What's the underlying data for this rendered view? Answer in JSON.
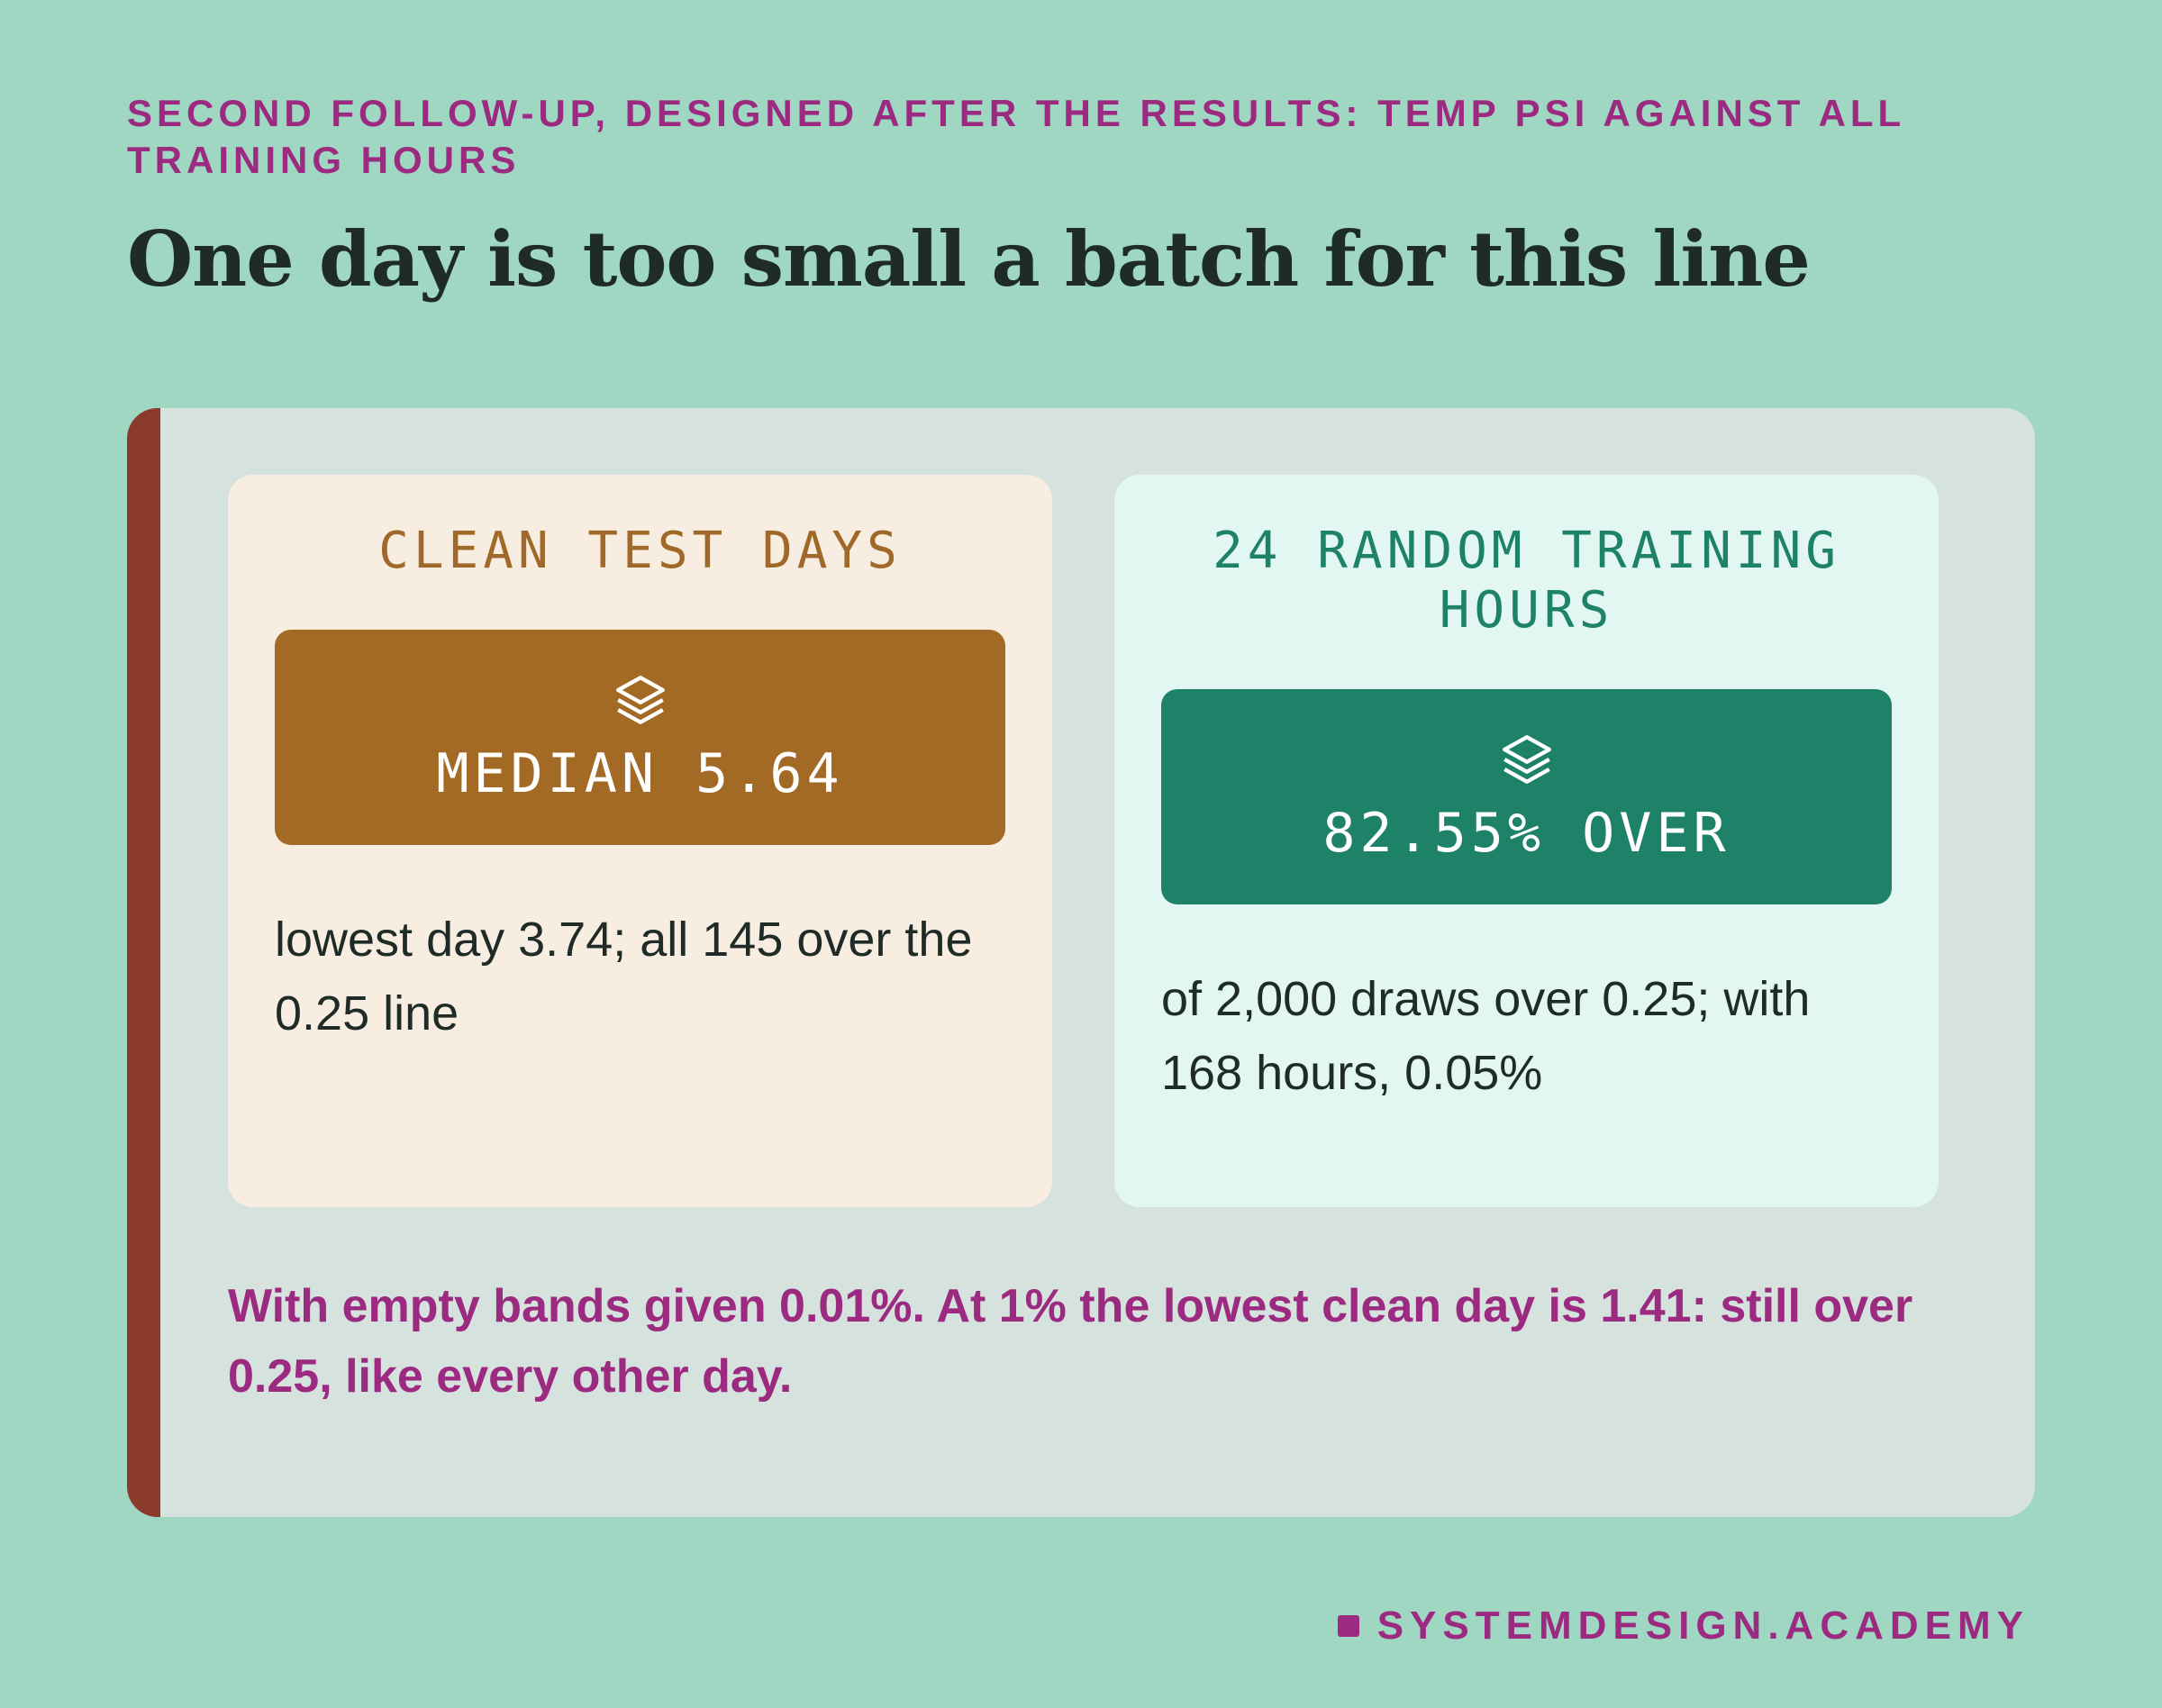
{
  "header": {
    "kicker": "SECOND FOLLOW-UP, DESIGNED AFTER THE RESULTS: TEMP PSI AGAINST ALL TRAINING HOURS",
    "title": "One day is too small a batch for this line"
  },
  "cards": [
    {
      "heading": "CLEAN TEST DAYS",
      "badge": "MEDIAN 5.64",
      "text": "lowest day 3.74; all 145 over the 0.25 line"
    },
    {
      "heading": "24 RANDOM TRAINING HOURS",
      "badge": "82.55% OVER",
      "text": "of 2,000 draws over 0.25; with 168 hours, 0.05%"
    }
  ],
  "note": "With empty bands given 0.01%. At 1% the lowest clean day is 1.41: still over 0.25, like every other day.",
  "footer": "SYSTEMDESIGN.ACADEMY"
}
